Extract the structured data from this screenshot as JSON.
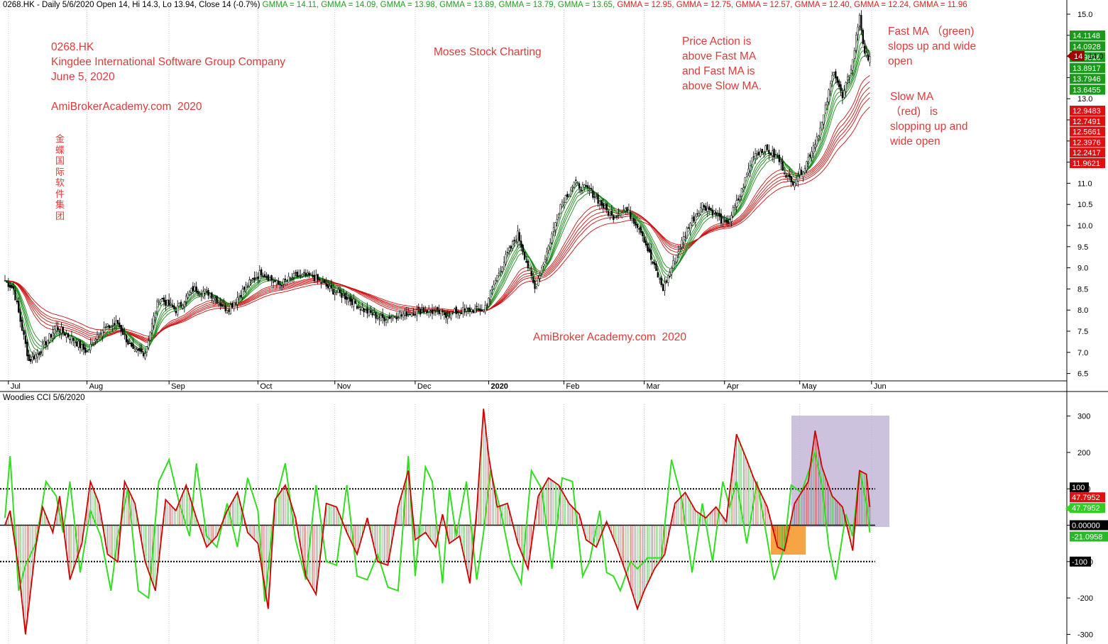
{
  "header": {
    "prefix": "0268.HK - Daily 5/6/2020 Open 14, Hi 14.3, Lo 13.94, Close 14 (-0.7%)",
    "gmma": [
      {
        "text": "GMMA = 14.11,",
        "color": "#1e9e1e"
      },
      {
        "text": "GMMA = 14.09,",
        "color": "#1e9e1e"
      },
      {
        "text": "GMMA = 13.98,",
        "color": "#1e9e1e"
      },
      {
        "text": "GMMA = 13.89,",
        "color": "#1e9e1e"
      },
      {
        "text": "GMMA = 13.79,",
        "color": "#1e9e1e"
      },
      {
        "text": "GMMA = 13.65,",
        "color": "#1e9e1e"
      },
      {
        "text": "GMMA = 12.95,",
        "color": "#d82020"
      },
      {
        "text": "GMMA = 12.75,",
        "color": "#d82020"
      },
      {
        "text": "GMMA = 12.57,",
        "color": "#d82020"
      },
      {
        "text": "GMMA = 12.40,",
        "color": "#d82020"
      },
      {
        "text": "GMMA = 12.24,",
        "color": "#d82020"
      },
      {
        "text": "GMMA = 11.96",
        "color": "#d82020"
      }
    ]
  },
  "annotations": {
    "title_block": "0268.HK\nKingdee International Software Group Company\nJune 5, 2020\n\nAmiBrokerAcademy.com  2020",
    "chinese_name": "金蝶国际软件集团",
    "site_center": "Moses Stock Charting",
    "price_action": "Price Action is\nabove Fast MA\nand Fast MA is\nabove Slow MA.",
    "fast_ma": "Fast MA （green)\nslops up and wide\nopen",
    "slow_ma": "Slow MA\n（red)   is\nslopping up and\nwide open",
    "watermark": "AmiBroker Academy.com  2020"
  },
  "cci_header": "Woodies CCI   5/6/2020",
  "colors": {
    "up": "#ffffff",
    "down": "#000000",
    "fast_ma": "#1a8a1a",
    "slow_ma": "#cc1010",
    "cci": "#d00000",
    "turbo": "#33dd22",
    "highlight_purple": "#b8a8d0",
    "highlight_orange": "#f59a30"
  },
  "chart_data": [
    {
      "type": "candlestick",
      "ylim": [
        6.2,
        15.2
      ],
      "y_ticks": [
        "15.0",
        "14.5",
        "14.0",
        "13.5",
        "13.0",
        "12.5",
        "12.0",
        "11.5",
        "11.0",
        "10.5",
        "10.0",
        "9.5",
        "9.0",
        "8.5",
        "8.0",
        "7.5",
        "7.0",
        "6.5"
      ],
      "x_ticks": [
        "Jul",
        "Aug",
        "Sep",
        "Oct",
        "Nov",
        "Dec",
        "2020",
        "Feb",
        "Mar",
        "Apr",
        "May",
        "Jun"
      ],
      "close_anchors": [
        [
          0,
          8.7
        ],
        [
          5,
          8.5
        ],
        [
          14,
          6.8
        ],
        [
          20,
          7.0
        ],
        [
          30,
          7.6
        ],
        [
          40,
          7.3
        ],
        [
          48,
          7.0
        ],
        [
          55,
          7.5
        ],
        [
          66,
          7.7
        ],
        [
          75,
          7.0
        ],
        [
          82,
          7.0
        ],
        [
          90,
          8.3
        ],
        [
          100,
          8.0
        ],
        [
          110,
          8.5
        ],
        [
          120,
          8.4
        ],
        [
          130,
          8.0
        ],
        [
          142,
          8.6
        ],
        [
          150,
          8.9
        ],
        [
          160,
          8.6
        ],
        [
          170,
          8.8
        ],
        [
          180,
          8.8
        ],
        [
          190,
          8.5
        ],
        [
          200,
          8.3
        ],
        [
          210,
          8.0
        ],
        [
          220,
          7.8
        ],
        [
          232,
          7.9
        ],
        [
          245,
          8.0
        ],
        [
          258,
          7.9
        ],
        [
          270,
          8.0
        ],
        [
          280,
          8.0
        ],
        [
          290,
          9.0
        ],
        [
          300,
          9.8
        ],
        [
          310,
          8.5
        ],
        [
          318,
          9.5
        ],
        [
          325,
          10.5
        ],
        [
          333,
          11.0
        ],
        [
          343,
          10.8
        ],
        [
          355,
          10.2
        ],
        [
          363,
          10.4
        ],
        [
          372,
          9.9
        ],
        [
          378,
          9.2
        ],
        [
          385,
          8.5
        ],
        [
          393,
          9.3
        ],
        [
          400,
          10.0
        ],
        [
          408,
          10.5
        ],
        [
          415,
          10.3
        ],
        [
          422,
          10.0
        ],
        [
          430,
          10.7
        ],
        [
          438,
          11.7
        ],
        [
          445,
          11.8
        ],
        [
          452,
          11.6
        ],
        [
          460,
          11.0
        ],
        [
          468,
          11.4
        ],
        [
          478,
          12.4
        ],
        [
          485,
          13.7
        ],
        [
          490,
          13.0
        ],
        [
          496,
          13.9
        ],
        [
          500,
          15.0
        ],
        [
          503,
          14.0
        ],
        [
          506,
          14.0
        ]
      ],
      "last_close": 14,
      "fast_ma_labels": [
        "14.1148",
        "14.0928",
        "13.9816",
        "13.8917",
        "13.7946",
        "13.6455"
      ],
      "slow_ma_labels": [
        "12.9483",
        "12.7491",
        "12.5661",
        "12.3976",
        "12.2417",
        "11.9621"
      ]
    },
    {
      "type": "line",
      "name": "Woodies CCI",
      "ylim": [
        -330,
        330
      ],
      "y_ticks": [
        "300",
        "200",
        "100",
        "0",
        "-100",
        "-200",
        "-300"
      ],
      "levels": {
        "plus": "100",
        "zero": "0.00000",
        "minus": "-100"
      },
      "cci_last": "47.7952",
      "turbo_last": "-21.0958",
      "cci_anchors": [
        [
          0,
          0
        ],
        [
          3,
          40
        ],
        [
          8,
          -120
        ],
        [
          12,
          -300
        ],
        [
          18,
          -60
        ],
        [
          22,
          50
        ],
        [
          28,
          -20
        ],
        [
          32,
          80
        ],
        [
          38,
          -150
        ],
        [
          45,
          -50
        ],
        [
          50,
          120
        ],
        [
          55,
          60
        ],
        [
          60,
          -80
        ],
        [
          66,
          -100
        ],
        [
          70,
          120
        ],
        [
          76,
          60
        ],
        [
          82,
          -100
        ],
        [
          88,
          -180
        ],
        [
          94,
          70
        ],
        [
          100,
          40
        ],
        [
          106,
          110
        ],
        [
          112,
          20
        ],
        [
          118,
          -60
        ],
        [
          124,
          -30
        ],
        [
          130,
          40
        ],
        [
          136,
          90
        ],
        [
          142,
          -20
        ],
        [
          148,
          -50
        ],
        [
          154,
          -230
        ],
        [
          158,
          70
        ],
        [
          164,
          110
        ],
        [
          170,
          20
        ],
        [
          176,
          -140
        ],
        [
          182,
          -190
        ],
        [
          188,
          60
        ],
        [
          194,
          50
        ],
        [
          200,
          -20
        ],
        [
          206,
          -80
        ],
        [
          212,
          20
        ],
        [
          218,
          -100
        ],
        [
          224,
          -110
        ],
        [
          230,
          50
        ],
        [
          236,
          150
        ],
        [
          240,
          -40
        ],
        [
          246,
          -20
        ],
        [
          252,
          -60
        ],
        [
          256,
          30
        ],
        [
          260,
          -50
        ],
        [
          266,
          -30
        ],
        [
          272,
          -160
        ],
        [
          276,
          40
        ],
        [
          280,
          320
        ],
        [
          283,
          190
        ],
        [
          288,
          50
        ],
        [
          294,
          60
        ],
        [
          300,
          -50
        ],
        [
          306,
          -120
        ],
        [
          312,
          80
        ],
        [
          318,
          130
        ],
        [
          324,
          110
        ],
        [
          330,
          60
        ],
        [
          336,
          30
        ],
        [
          340,
          -40
        ],
        [
          346,
          -60
        ],
        [
          352,
          10
        ],
        [
          358,
          -60
        ],
        [
          364,
          -140
        ],
        [
          370,
          -230
        ],
        [
          374,
          -180
        ],
        [
          380,
          -120
        ],
        [
          386,
          -80
        ],
        [
          392,
          60
        ],
        [
          398,
          90
        ],
        [
          404,
          40
        ],
        [
          410,
          20
        ],
        [
          416,
          50
        ],
        [
          422,
          10
        ],
        [
          428,
          250
        ],
        [
          434,
          180
        ],
        [
          438,
          130
        ],
        [
          446,
          50
        ],
        [
          452,
          -60
        ],
        [
          456,
          -70
        ],
        [
          462,
          60
        ],
        [
          470,
          120
        ],
        [
          474,
          260
        ],
        [
          478,
          160
        ],
        [
          484,
          80
        ],
        [
          490,
          50
        ],
        [
          496,
          -70
        ],
        [
          500,
          150
        ],
        [
          504,
          140
        ],
        [
          506,
          50
        ]
      ],
      "turbo_anchors": [
        [
          0,
          20
        ],
        [
          3,
          190
        ],
        [
          8,
          -180
        ],
        [
          12,
          -110
        ],
        [
          18,
          -50
        ],
        [
          24,
          120
        ],
        [
          30,
          80
        ],
        [
          34,
          -20
        ],
        [
          38,
          120
        ],
        [
          44,
          -130
        ],
        [
          50,
          40
        ],
        [
          56,
          -30
        ],
        [
          62,
          -180
        ],
        [
          66,
          -30
        ],
        [
          72,
          100
        ],
        [
          78,
          -180
        ],
        [
          84,
          -200
        ],
        [
          90,
          120
        ],
        [
          96,
          180
        ],
        [
          102,
          60
        ],
        [
          108,
          -30
        ],
        [
          112,
          170
        ],
        [
          118,
          -30
        ],
        [
          124,
          -60
        ],
        [
          130,
          60
        ],
        [
          136,
          -60
        ],
        [
          142,
          130
        ],
        [
          148,
          40
        ],
        [
          152,
          -210
        ],
        [
          158,
          60
        ],
        [
          164,
          170
        ],
        [
          170,
          -40
        ],
        [
          176,
          -150
        ],
        [
          182,
          110
        ],
        [
          188,
          -100
        ],
        [
          194,
          -110
        ],
        [
          200,
          110
        ],
        [
          206,
          -140
        ],
        [
          212,
          -150
        ],
        [
          218,
          -80
        ],
        [
          224,
          -170
        ],
        [
          230,
          -180
        ],
        [
          236,
          190
        ],
        [
          240,
          -140
        ],
        [
          246,
          160
        ],
        [
          250,
          120
        ],
        [
          256,
          -160
        ],
        [
          260,
          100
        ],
        [
          264,
          -30
        ],
        [
          270,
          120
        ],
        [
          276,
          -150
        ],
        [
          280,
          -20
        ],
        [
          284,
          150
        ],
        [
          290,
          40
        ],
        [
          296,
          -100
        ],
        [
          302,
          -160
        ],
        [
          308,
          150
        ],
        [
          314,
          100
        ],
        [
          320,
          -120
        ],
        [
          326,
          130
        ],
        [
          332,
          120
        ],
        [
          338,
          -140
        ],
        [
          342,
          -100
        ],
        [
          348,
          40
        ],
        [
          352,
          -130
        ],
        [
          356,
          -140
        ],
        [
          360,
          -180
        ],
        [
          366,
          -100
        ],
        [
          370,
          -120
        ],
        [
          376,
          -90
        ],
        [
          384,
          -90
        ],
        [
          390,
          180
        ],
        [
          396,
          70
        ],
        [
          402,
          -130
        ],
        [
          408,
          60
        ],
        [
          414,
          -100
        ],
        [
          420,
          120
        ],
        [
          424,
          50
        ],
        [
          428,
          120
        ],
        [
          434,
          -50
        ],
        [
          440,
          120
        ],
        [
          446,
          -40
        ],
        [
          450,
          -150
        ],
        [
          456,
          -60
        ],
        [
          460,
          110
        ],
        [
          466,
          90
        ],
        [
          474,
          200
        ],
        [
          478,
          110
        ],
        [
          482,
          -60
        ],
        [
          486,
          -150
        ],
        [
          492,
          30
        ],
        [
          496,
          -30
        ],
        [
          500,
          150
        ],
        [
          504,
          60
        ],
        [
          506,
          -20
        ]
      ],
      "grid_x_ticks": [
        "Jul",
        "Aug",
        "Sep",
        "Oct",
        "Nov",
        "Dec",
        "2020",
        "Feb",
        "Mar",
        "Apr",
        "May",
        "Jun"
      ]
    }
  ]
}
